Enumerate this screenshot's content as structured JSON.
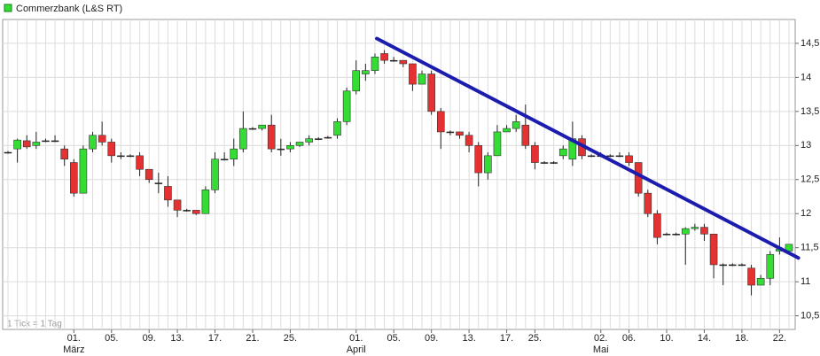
{
  "chart_data": {
    "type": "candlestick",
    "legend": "top-left",
    "footnote": "1 Tick = 1 Tag",
    "grid": true,
    "up_color": "#33dd33",
    "down_color": "#e43232",
    "categories": [
      null,
      null,
      null,
      null,
      null,
      null,
      null,
      "01.",
      null,
      null,
      null,
      "05.",
      null,
      null,
      null,
      "09.",
      null,
      null,
      "13.",
      null,
      null,
      null,
      "17.",
      null,
      null,
      null,
      "21.",
      null,
      null,
      null,
      "25.",
      null,
      null,
      null,
      null,
      null,
      null,
      "01.",
      null,
      null,
      null,
      "05.",
      null,
      null,
      null,
      "09.",
      null,
      null,
      null,
      "13.",
      null,
      null,
      null,
      "17.",
      null,
      null,
      "25.",
      null,
      null,
      null,
      null,
      null,
      null,
      "02.",
      null,
      null,
      "06.",
      null,
      null,
      null,
      "10.",
      null,
      null,
      null,
      "14.",
      null,
      null,
      null,
      "18.",
      null,
      null,
      null,
      "22.",
      null
    ],
    "category_months": [
      null,
      null,
      null,
      null,
      null,
      null,
      null,
      "März",
      null,
      null,
      null,
      null,
      null,
      null,
      null,
      null,
      null,
      null,
      null,
      null,
      null,
      null,
      null,
      null,
      null,
      null,
      null,
      null,
      null,
      null,
      null,
      null,
      null,
      null,
      null,
      null,
      null,
      "April",
      null,
      null,
      null,
      null,
      null,
      null,
      null,
      null,
      null,
      null,
      null,
      null,
      null,
      null,
      null,
      null,
      null,
      null,
      null,
      null,
      null,
      null,
      null,
      null,
      null,
      "Mai",
      null,
      null,
      null,
      null,
      null,
      null,
      null,
      null,
      null,
      null,
      null,
      null,
      null,
      null,
      null,
      null,
      null,
      null,
      null,
      null
    ],
    "series": [
      {
        "name": "Commerzbank (L&S RT)",
        "open": [
          12.9,
          12.95,
          13.07,
          13.0,
          13.07,
          13.07,
          12.95,
          12.75,
          12.3,
          12.95,
          13.15,
          13.05,
          12.85,
          12.85,
          12.85,
          12.65,
          12.45,
          12.4,
          12.2,
          12.05,
          12.05,
          12.0,
          12.35,
          12.8,
          12.8,
          12.95,
          13.25,
          13.25,
          13.3,
          12.95,
          12.95,
          13.0,
          13.05,
          13.1,
          13.12,
          13.15,
          13.35,
          13.8,
          14.05,
          14.1,
          14.35,
          14.25,
          14.25,
          14.2,
          13.9,
          14.05,
          13.5,
          13.2,
          13.2,
          13.15,
          13.0,
          12.6,
          12.85,
          13.2,
          13.25,
          13.3,
          13.0,
          12.75,
          12.75,
          12.85,
          12.8,
          13.1,
          12.85,
          12.85,
          12.85,
          12.85,
          12.85,
          12.75,
          12.3,
          12.0,
          11.7,
          11.7,
          11.7,
          11.78,
          11.8,
          11.7,
          11.25,
          11.25,
          11.25,
          11.2,
          10.95,
          11.05,
          11.45,
          11.45
        ],
        "high": [
          12.92,
          13.1,
          13.15,
          13.2,
          13.1,
          13.15,
          13.0,
          12.8,
          13.0,
          13.2,
          13.35,
          13.1,
          12.9,
          12.87,
          12.9,
          12.65,
          12.6,
          12.55,
          12.2,
          12.07,
          12.05,
          12.4,
          12.9,
          12.9,
          13.1,
          13.5,
          13.27,
          13.3,
          13.45,
          13.1,
          13.05,
          13.05,
          13.15,
          13.12,
          13.14,
          13.4,
          13.85,
          14.25,
          14.2,
          14.35,
          14.4,
          14.3,
          14.25,
          14.2,
          14.1,
          14.1,
          13.55,
          13.22,
          13.2,
          13.2,
          13.05,
          12.9,
          13.3,
          13.3,
          13.45,
          13.6,
          13.05,
          12.77,
          12.77,
          13.0,
          13.35,
          13.15,
          12.87,
          12.9,
          12.87,
          12.9,
          12.9,
          12.75,
          12.35,
          12.05,
          11.72,
          11.72,
          11.8,
          11.85,
          11.85,
          11.7,
          11.27,
          11.27,
          11.27,
          11.25,
          11.1,
          11.45,
          11.65,
          11.55
        ],
        "low": [
          12.88,
          12.75,
          12.95,
          12.95,
          13.05,
          13.05,
          12.7,
          12.25,
          12.3,
          12.9,
          13.0,
          12.75,
          12.8,
          12.83,
          12.55,
          12.45,
          12.3,
          12.1,
          11.95,
          12.03,
          11.98,
          12.0,
          12.3,
          12.78,
          12.7,
          12.9,
          13.23,
          13.22,
          12.9,
          12.85,
          12.9,
          12.98,
          13.0,
          13.08,
          13.1,
          13.1,
          13.3,
          13.75,
          13.95,
          14.05,
          14.2,
          14.23,
          14.15,
          13.8,
          13.9,
          13.45,
          12.95,
          13.15,
          13.1,
          12.9,
          12.4,
          12.5,
          12.85,
          13.2,
          13.2,
          12.95,
          12.65,
          12.73,
          12.73,
          12.8,
          12.7,
          12.8,
          12.83,
          12.83,
          12.83,
          12.83,
          12.7,
          12.25,
          11.95,
          11.55,
          11.68,
          11.68,
          11.25,
          11.75,
          11.6,
          11.05,
          10.95,
          11.23,
          11.23,
          10.8,
          10.95,
          10.95,
          11.4,
          11.45
        ],
        "close": [
          12.9,
          13.08,
          12.98,
          13.05,
          13.07,
          13.07,
          12.8,
          12.3,
          12.95,
          13.15,
          13.05,
          12.85,
          12.85,
          12.85,
          12.65,
          12.5,
          12.45,
          12.2,
          12.05,
          12.05,
          12.0,
          12.35,
          12.8,
          12.8,
          12.95,
          13.25,
          13.25,
          13.3,
          12.95,
          12.95,
          13.0,
          13.05,
          13.1,
          13.1,
          13.12,
          13.35,
          13.8,
          14.1,
          14.1,
          14.3,
          14.25,
          14.25,
          14.2,
          13.9,
          14.05,
          13.5,
          13.2,
          13.2,
          13.15,
          13.0,
          12.6,
          12.85,
          13.2,
          13.25,
          13.35,
          13.0,
          12.75,
          12.75,
          12.75,
          12.95,
          13.1,
          12.85,
          12.85,
          12.85,
          12.85,
          12.85,
          12.75,
          12.3,
          12.0,
          11.65,
          11.7,
          11.7,
          11.78,
          11.8,
          11.7,
          11.25,
          11.25,
          11.25,
          11.25,
          10.95,
          11.05,
          11.4,
          11.48,
          11.55
        ]
      }
    ],
    "trend_line": {
      "x": [
        39.2,
        84
      ],
      "values": [
        14.57,
        11.35
      ],
      "color": "#1c1cae"
    },
    "ylim": [
      10.3,
      14.85
    ],
    "yticks": [
      {
        "value": 10.5,
        "label": "10,5"
      },
      11,
      {
        "value": 11.5,
        "label": "11,5"
      },
      12,
      {
        "value": 12.5,
        "label": "12,5"
      },
      13,
      {
        "value": 13.5,
        "label": "13,5"
      },
      14,
      {
        "value": 14.5,
        "label": "14,5"
      }
    ]
  }
}
